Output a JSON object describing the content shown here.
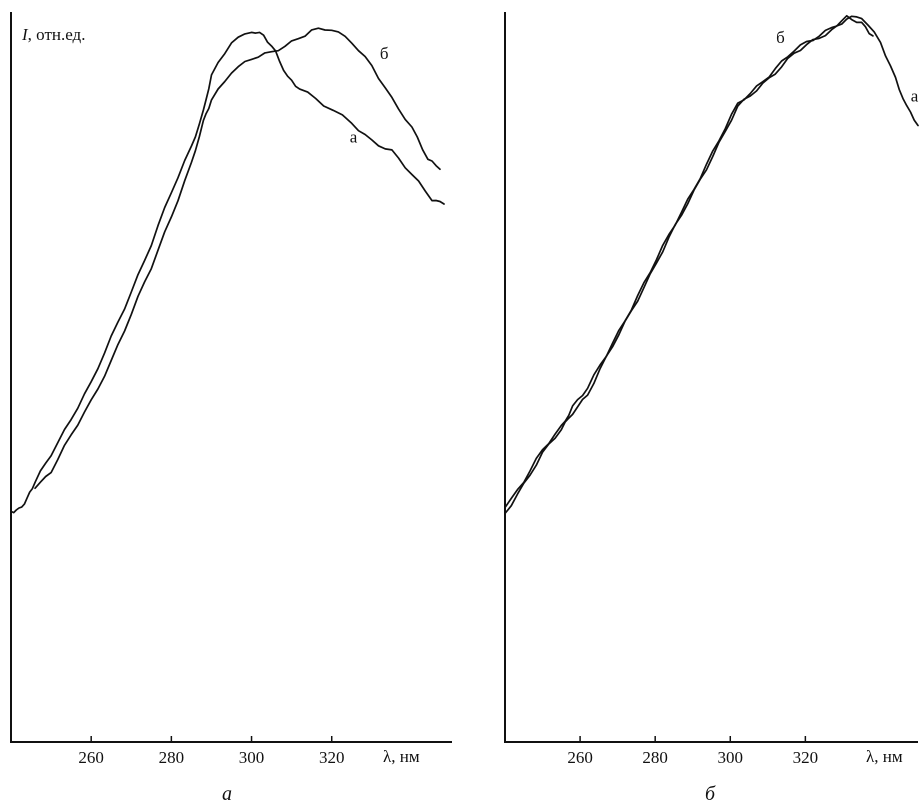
{
  "chart_data": [
    {
      "type": "line",
      "panel_label": "а",
      "ylabel_italic": "I",
      "ylabel_rest": ", отн.ед.",
      "xlabel": "λ, нм",
      "xlim": [
        240,
        350
      ],
      "ylim": [
        0,
        1
      ],
      "x_ticks": [
        260,
        280,
        300,
        320
      ],
      "grid": false,
      "series": [
        {
          "name": "а",
          "x": [
            240,
            242,
            244,
            246,
            250,
            255,
            260,
            265,
            270,
            275,
            280,
            285,
            288,
            290,
            295,
            300,
            303,
            306,
            309,
            312,
            318,
            325,
            330,
            335,
            340,
            345,
            348
          ],
          "y": [
            0.17,
            0.175,
            0.19,
            0.22,
            0.27,
            0.33,
            0.39,
            0.47,
            0.55,
            0.63,
            0.72,
            0.8,
            0.86,
            0.92,
            0.98,
            1.0,
            0.99,
            0.96,
            0.92,
            0.9,
            0.87,
            0.84,
            0.81,
            0.79,
            0.75,
            0.71,
            0.7
          ]
        },
        {
          "name": "б",
          "x": [
            246,
            250,
            255,
            260,
            265,
            270,
            275,
            280,
            285,
            288,
            290,
            295,
            300,
            305,
            310,
            315,
            320,
            325,
            330,
            335,
            340,
            344,
            347
          ],
          "y": [
            0.21,
            0.24,
            0.3,
            0.36,
            0.43,
            0.51,
            0.59,
            0.68,
            0.77,
            0.84,
            0.88,
            0.93,
            0.95,
            0.96,
            0.98,
            1.0,
            1.0,
            0.98,
            0.94,
            0.88,
            0.83,
            0.78,
            0.76
          ]
        }
      ],
      "annotations": [
        {
          "text": "б",
          "series": "б",
          "x": 330
        },
        {
          "text": "а",
          "series": "а",
          "x": 320
        }
      ]
    },
    {
      "type": "line",
      "panel_label": "б",
      "xlabel": "λ, нм",
      "xlim": [
        240,
        350
      ],
      "ylim": [
        0,
        1
      ],
      "x_ticks": [
        260,
        280,
        300,
        320
      ],
      "grid": false,
      "series": [
        {
          "name": "а",
          "x": [
            240,
            245,
            250,
            255,
            258,
            262,
            267,
            272,
            277,
            282,
            287,
            292,
            297,
            302,
            307,
            312,
            317,
            322,
            327,
            331,
            335,
            340,
            344,
            347,
            350
          ],
          "y": [
            0.17,
            0.22,
            0.27,
            0.31,
            0.34,
            0.37,
            0.43,
            0.49,
            0.55,
            0.61,
            0.67,
            0.73,
            0.79,
            0.85,
            0.88,
            0.91,
            0.94,
            0.96,
            0.98,
            1.0,
            1.0,
            0.96,
            0.9,
            0.85,
            0.82
          ]
        },
        {
          "name": "б",
          "x": [
            240,
            245,
            250,
            255,
            258,
            262,
            267,
            272,
            277,
            282,
            287,
            292,
            297,
            302,
            307,
            312,
            317,
            322,
            327,
            331,
            335,
            338
          ],
          "y": [
            0.18,
            0.225,
            0.275,
            0.315,
            0.35,
            0.38,
            0.435,
            0.495,
            0.555,
            0.615,
            0.675,
            0.735,
            0.795,
            0.855,
            0.885,
            0.915,
            0.945,
            0.965,
            0.985,
            1.0,
            0.99,
            0.97
          ]
        }
      ],
      "annotations": [
        {
          "text": "б",
          "series": "б",
          "x": 317
        },
        {
          "text": "а",
          "series": "а",
          "x": 347
        }
      ]
    }
  ]
}
